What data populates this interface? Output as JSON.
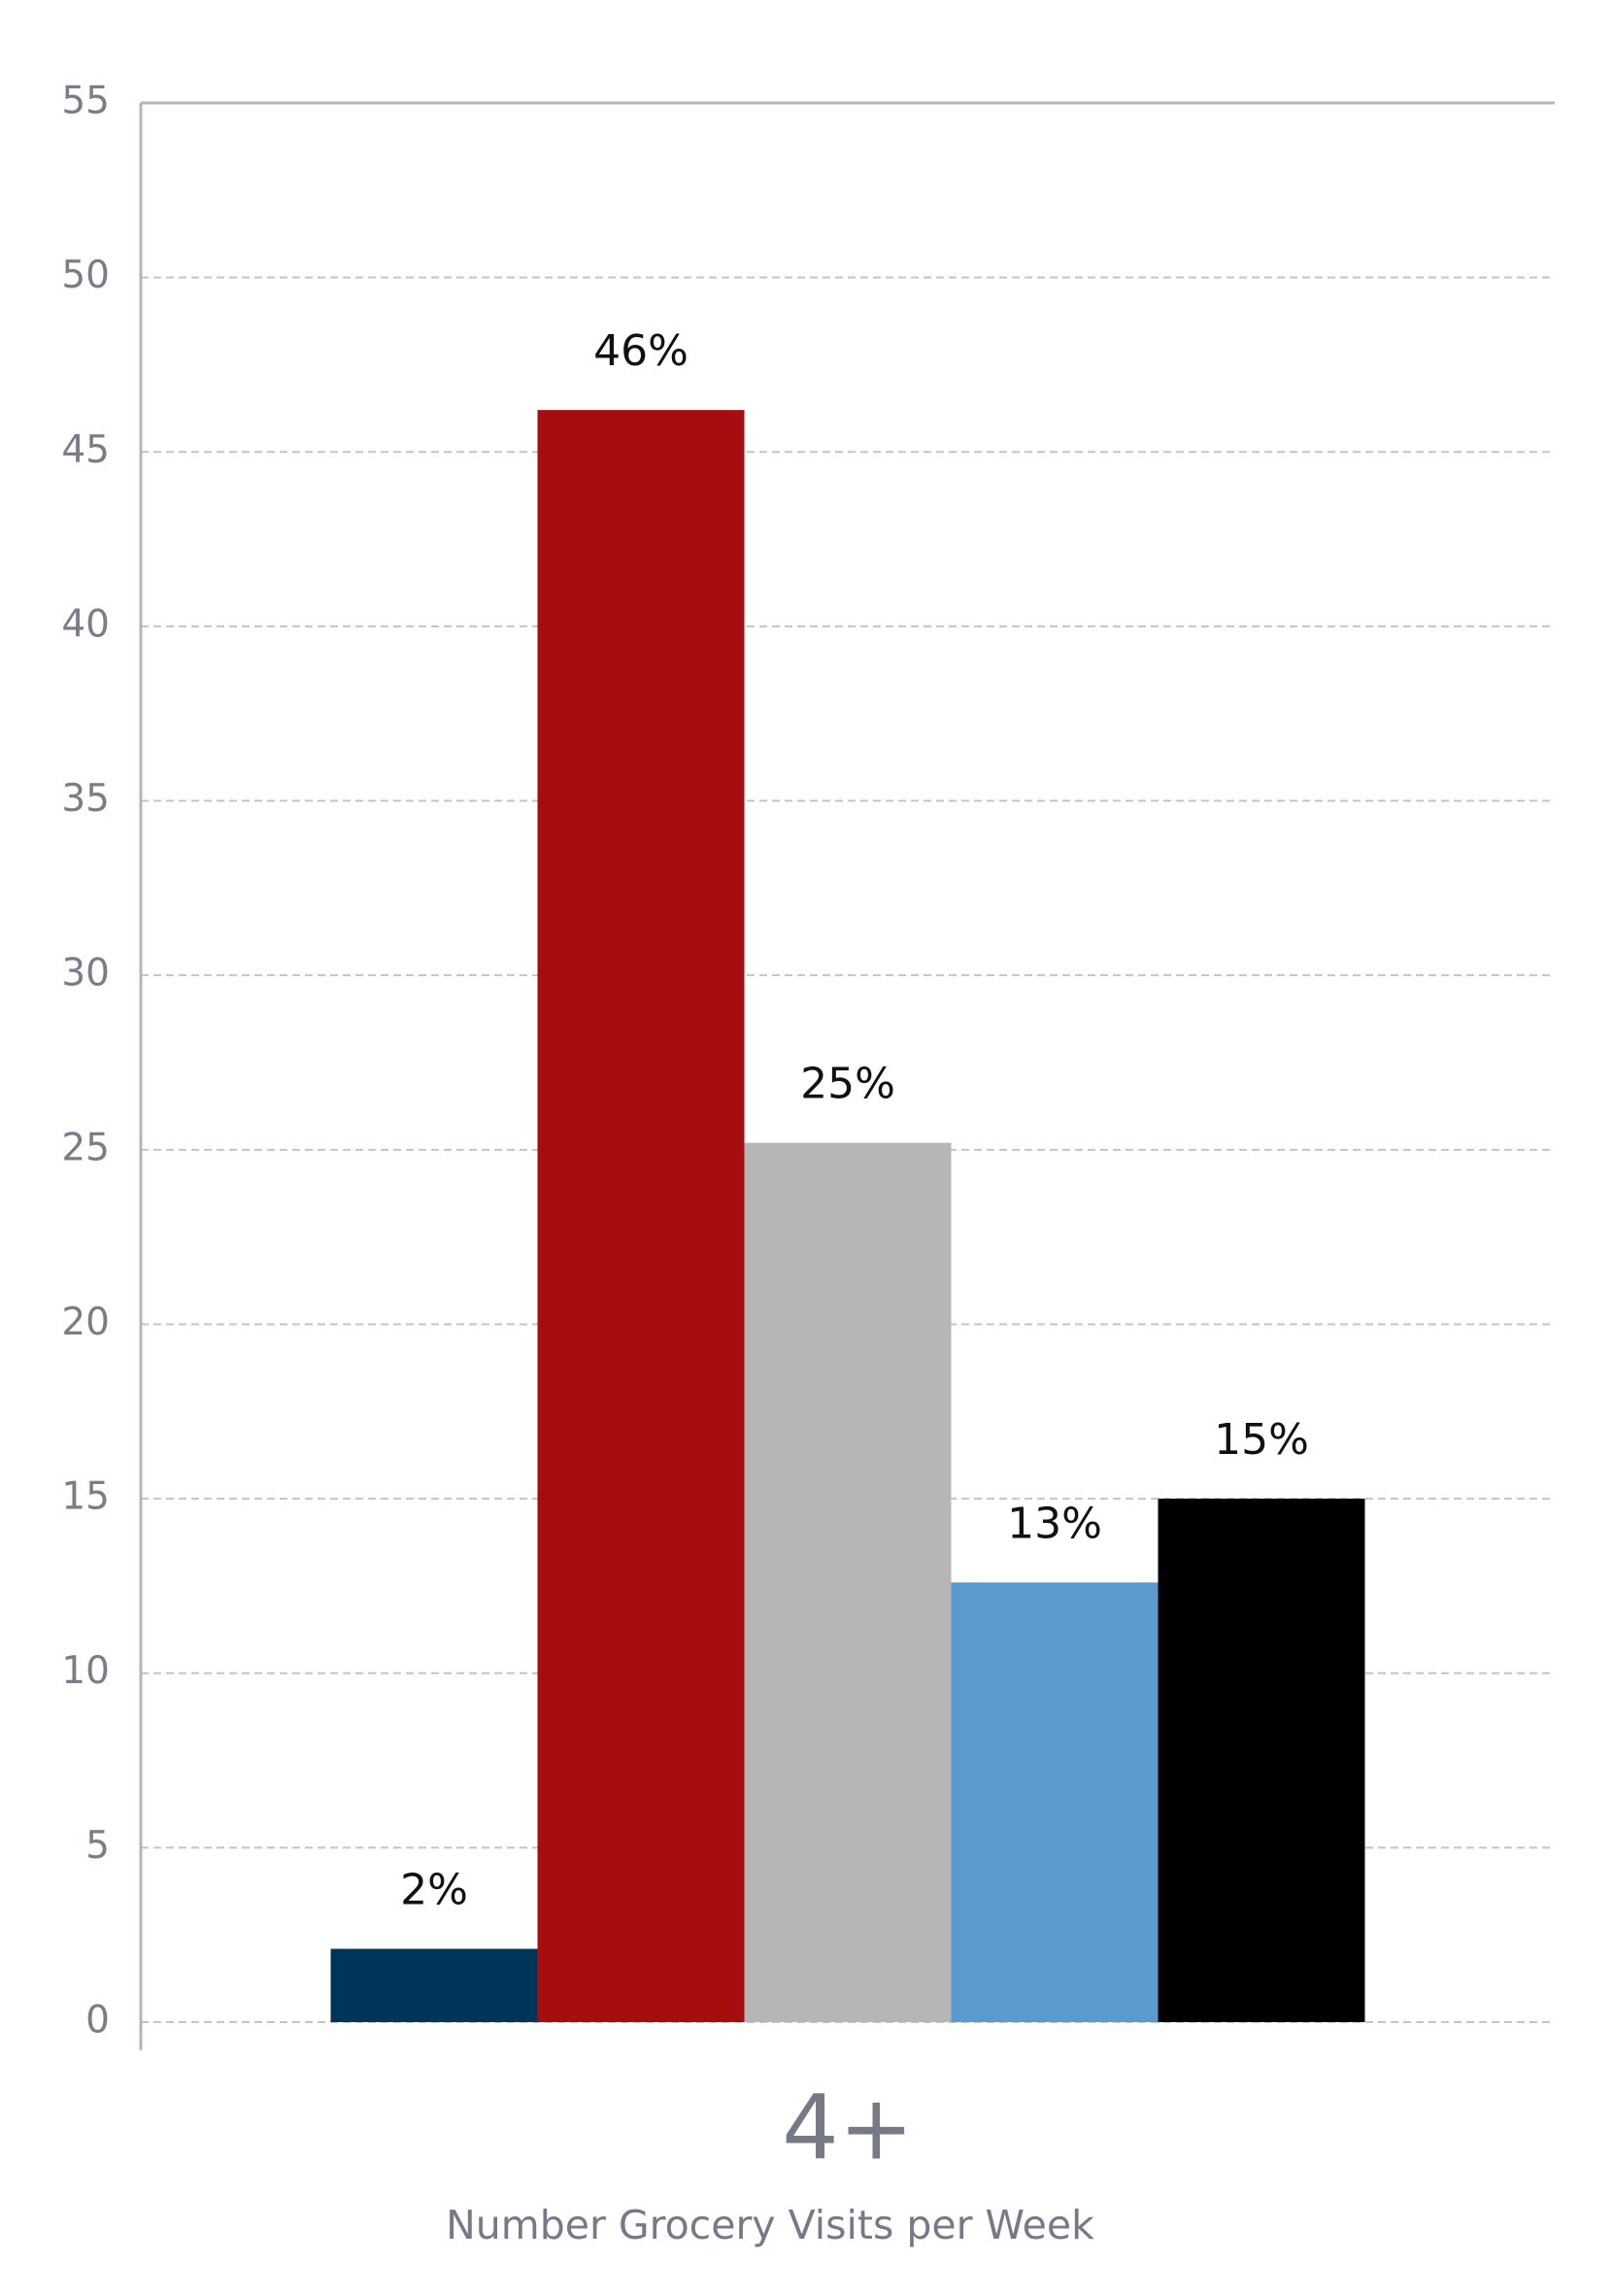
{
  "chart_data": {
    "type": "bar",
    "categories": [
      "4+"
    ],
    "xlabel": "Number Grocery Visits per Week",
    "series": [
      {
        "color": "#00355a",
        "values": [
          2.1
        ],
        "value_labels": [
          "2%"
        ]
      },
      {
        "color": "#a50d0e",
        "values": [
          46.2
        ],
        "value_labels": [
          "46%"
        ]
      },
      {
        "color": "#b6b6b6",
        "values": [
          25.2
        ],
        "value_labels": [
          "25%"
        ]
      },
      {
        "color": "#5a9bcf",
        "values": [
          12.6
        ],
        "value_labels": [
          "13%"
        ]
      },
      {
        "color": "#000000",
        "values": [
          15.0
        ],
        "value_labels": [
          "15%"
        ]
      }
    ],
    "ylim": [
      0,
      55
    ],
    "yticks": [
      0,
      5,
      10,
      15,
      20,
      25,
      30,
      35,
      40,
      45,
      50,
      55
    ],
    "grid": true
  }
}
